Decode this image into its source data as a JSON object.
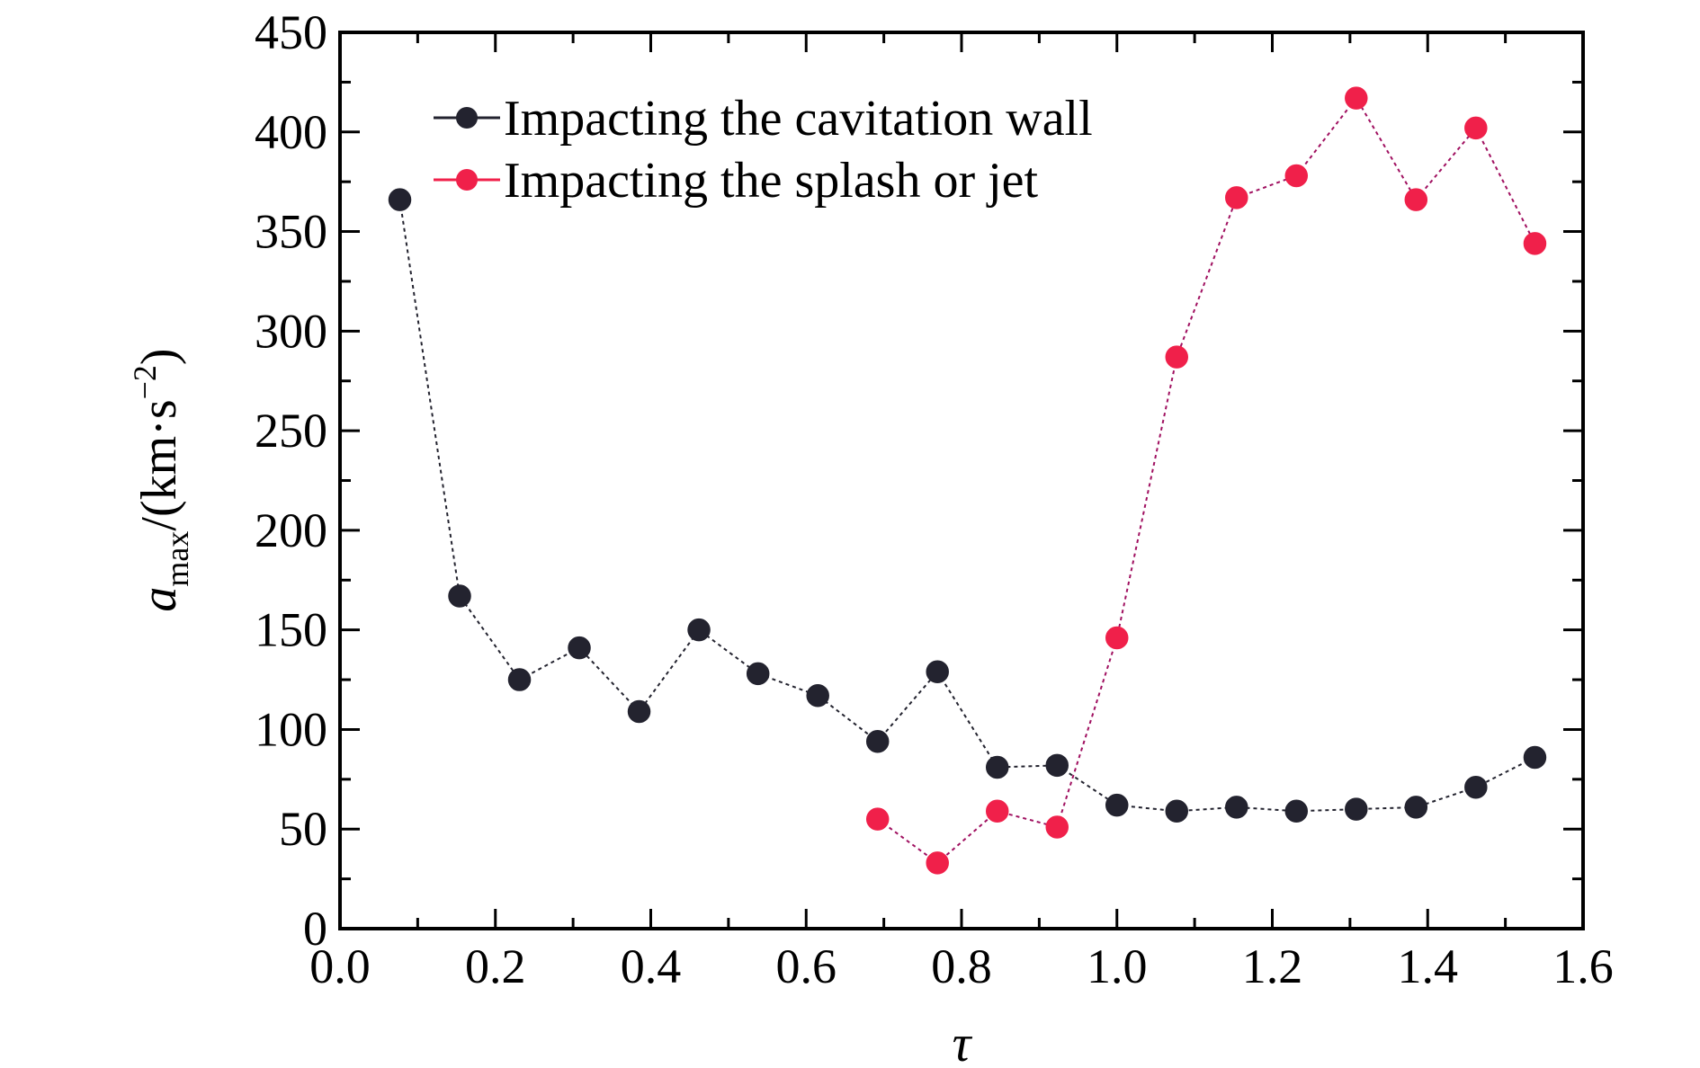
{
  "chart_data": {
    "type": "line",
    "xlabel": "τ",
    "ylabel": {
      "base": "a",
      "subscript": "max",
      "units_open": "/(km·s",
      "units_exponent": "−2",
      "units_close": ")"
    },
    "xlim": [
      0.0,
      1.6
    ],
    "ylim": [
      0,
      450
    ],
    "x_ticks": [
      "0.0",
      "0.2",
      "0.4",
      "0.6",
      "0.8",
      "1.0",
      "1.2",
      "1.4",
      "1.6"
    ],
    "y_ticks": [
      "0",
      "50",
      "100",
      "150",
      "200",
      "250",
      "300",
      "350",
      "400",
      "450"
    ],
    "grid": false,
    "legend_position": "top-center",
    "series": [
      {
        "name": "Impacting the cavitation wall",
        "color": "#23232f",
        "line_style": "dotted",
        "x": [
          0.077,
          0.154,
          0.231,
          0.308,
          0.385,
          0.462,
          0.538,
          0.615,
          0.692,
          0.769,
          0.846,
          0.923,
          1.0,
          1.077,
          1.154,
          1.231,
          1.308,
          1.385,
          1.462,
          1.538
        ],
        "y": [
          366,
          167,
          125,
          141,
          109,
          150,
          128,
          117,
          94,
          129,
          81,
          82,
          62,
          59,
          61,
          59,
          60,
          61,
          71,
          86
        ]
      },
      {
        "name": "Impacting the splash or jet",
        "color": "#f0204a",
        "line_color": "#a01060",
        "line_style": "dotted",
        "x": [
          0.692,
          0.769,
          0.846,
          0.923,
          1.0,
          1.077,
          1.154,
          1.231,
          1.308,
          1.385,
          1.462,
          1.538
        ],
        "y": [
          55,
          33,
          59,
          51,
          146,
          287,
          367,
          378,
          417,
          366,
          402,
          344
        ]
      }
    ]
  }
}
